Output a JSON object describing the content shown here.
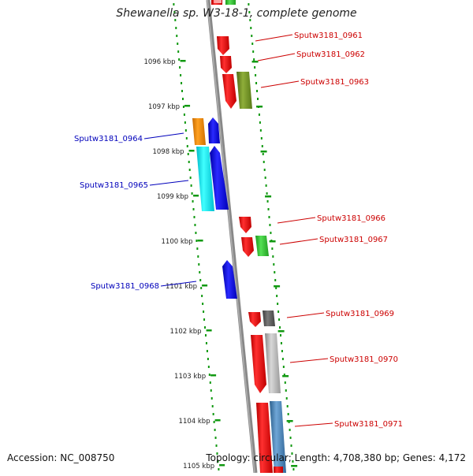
{
  "header": {
    "title": "Shewanella sp. W3-18-1, complete genome"
  },
  "footer": {
    "accession": "Accession: NC_008750",
    "summary": "Topology: circular; Length: 4,708,380 bp; Genes: 4,172"
  },
  "axis": {
    "ticks": [
      "1096 kbp",
      "1097 kbp",
      "1098 kbp",
      "1099 kbp",
      "1100 kbp",
      "1101 kbp",
      "1102 kbp",
      "1103 kbp",
      "1104 kbp",
      "1105 kbp"
    ]
  },
  "colors": {
    "forward_label": "#cc0000",
    "reverse_label": "#0000bb",
    "backbone": "#888888",
    "dots": "#119911"
  },
  "genes": [
    {
      "label": "Sputw3181_0961",
      "strand": "forward"
    },
    {
      "label": "Sputw3181_0962",
      "strand": "forward"
    },
    {
      "label": "Sputw3181_0963",
      "strand": "forward"
    },
    {
      "label": "Sputw3181_0964",
      "strand": "reverse"
    },
    {
      "label": "Sputw3181_0965",
      "strand": "reverse"
    },
    {
      "label": "Sputw3181_0966",
      "strand": "forward"
    },
    {
      "label": "Sputw3181_0967",
      "strand": "forward"
    },
    {
      "label": "Sputw3181_0968",
      "strand": "reverse"
    },
    {
      "label": "Sputw3181_0969",
      "strand": "forward"
    },
    {
      "label": "Sputw3181_0970",
      "strand": "forward"
    },
    {
      "label": "Sputw3181_0971",
      "strand": "forward"
    }
  ]
}
